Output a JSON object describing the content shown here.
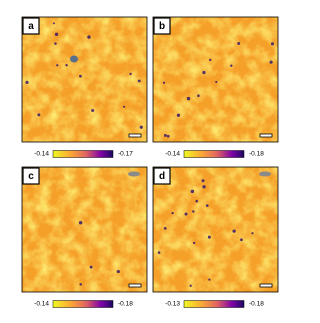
{
  "panels": [
    {
      "label": "a",
      "colorbar_min": "-0.14",
      "colorbar_max": "-0.17"
    },
    {
      "label": "b",
      "colorbar_min": "-0.14",
      "colorbar_max": "-0.18"
    },
    {
      "label": "c",
      "colorbar_min": "-0.14",
      "colorbar_max": "-0.18"
    },
    {
      "label": "d",
      "colorbar_min": "-0.13",
      "colorbar_max": "-0.18"
    }
  ]
}
